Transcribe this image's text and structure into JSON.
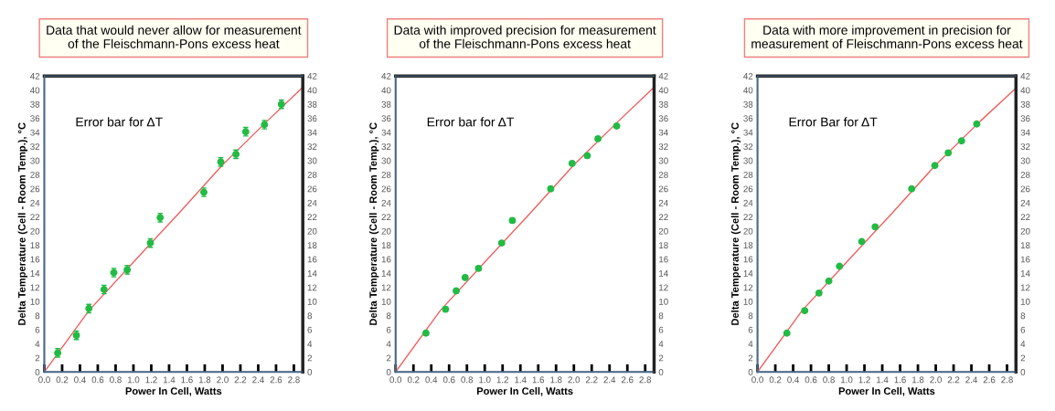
{
  "chart_data": [
    {
      "type": "scatter",
      "title": "Data that would never allow for measurement\nof the Fleischmann-Pons excess heat",
      "xlabel": "Power In Cell, Watts",
      "ylabel": "Delta Temperature (Cell - Room Temp.), °C",
      "annotations": [
        "Error bar for ΔT"
      ],
      "marker": "circle",
      "grid": false,
      "xlim": [
        0,
        2.9
      ],
      "xticks": [
        {
          "value": 0,
          "label": "0.0"
        },
        0.2,
        0.4,
        0.6,
        0.8,
        {
          "value": 1,
          "label": "1.0"
        },
        1.2,
        1.4,
        1.6,
        1.8,
        {
          "value": 2,
          "label": "2.0"
        },
        2.2,
        2.4,
        2.6,
        2.8
      ],
      "ylim": [
        0,
        42
      ],
      "yticks": [
        0,
        2,
        4,
        6,
        8,
        10,
        12,
        14,
        16,
        18,
        20,
        22,
        24,
        26,
        28,
        30,
        32,
        34,
        36,
        38,
        40,
        42
      ],
      "y2lim": [
        0,
        42
      ],
      "y2ticks": [
        0,
        2,
        4,
        6,
        8,
        10,
        12,
        14,
        16,
        18,
        20,
        22,
        24,
        26,
        28,
        30,
        32,
        34,
        36,
        38,
        40,
        42
      ],
      "series": [
        {
          "color": "#22bb44",
          "x": [
            0.15,
            0.36,
            0.5,
            0.67,
            0.78,
            0.93,
            1.19,
            1.3,
            1.79,
            1.98,
            2.15,
            2.26,
            2.47,
            2.66
          ],
          "values": [
            2.7,
            5.2,
            9.0,
            11.7,
            14.1,
            14.5,
            18.3,
            21.9,
            25.5,
            29.8,
            30.9,
            34.1,
            35.1,
            38.0
          ],
          "errors": [
            0.6,
            0.6,
            0.6,
            0.6,
            0.6,
            0.6,
            0.6,
            0.6,
            0.6,
            0.6,
            0.6,
            0.6,
            0.6,
            0.6
          ]
        },
        {
          "type": "line",
          "marker": "none",
          "color": "#f06060",
          "x": [
            0,
            0.5,
            1.0,
            1.5,
            2.0,
            2.5,
            2.9
          ],
          "values": [
            0,
            8.7,
            15.6,
            22.4,
            29.4,
            35.6,
            40.4
          ]
        }
      ]
    },
    {
      "type": "scatter",
      "title": "Data with improved precision for measurement\nof the Fleischmann-Pons excess heat",
      "xlabel": "Power In Cell, Watts",
      "ylabel": "Delta Temperature (Cell - Room Temp.), °C",
      "annotations": [
        "Error bar for ΔT"
      ],
      "marker": "circle",
      "grid": false,
      "xlim": [
        0,
        2.9
      ],
      "xticks": [
        {
          "value": 0,
          "label": "0.0"
        },
        0.2,
        0.4,
        0.6,
        0.8,
        {
          "value": 1,
          "label": "1.0"
        },
        1.2,
        1.4,
        1.6,
        1.8,
        {
          "value": 2,
          "label": "2.0"
        },
        2.2,
        2.4,
        2.6,
        2.8
      ],
      "ylim": [
        0,
        42
      ],
      "yticks": [
        0,
        2,
        4,
        6,
        8,
        10,
        12,
        14,
        16,
        18,
        20,
        22,
        24,
        26,
        28,
        30,
        32,
        34,
        36,
        38,
        40,
        42
      ],
      "y2lim": [
        0,
        42
      ],
      "y2ticks": [
        0,
        2,
        4,
        6,
        8,
        10,
        12,
        14,
        16,
        18,
        20,
        22,
        24,
        26,
        28,
        30,
        32,
        34,
        36,
        38,
        40,
        42
      ],
      "series": [
        {
          "color": "#22bb44",
          "x": [
            0.34,
            0.56,
            0.68,
            0.78,
            0.93,
            1.19,
            1.31,
            1.74,
            1.98,
            2.15,
            2.27,
            2.48
          ],
          "values": [
            5.5,
            8.9,
            11.5,
            13.4,
            14.7,
            18.3,
            21.5,
            26.0,
            29.6,
            30.7,
            33.1,
            34.9
          ],
          "errors": [
            0.3,
            0.3,
            0.3,
            0.3,
            0.3,
            0.3,
            0.3,
            0.3,
            0.3,
            0.3,
            0.3,
            0.3
          ]
        },
        {
          "type": "line",
          "marker": "none",
          "color": "#f06060",
          "x": [
            0,
            0.5,
            1.0,
            1.5,
            2.0,
            2.5,
            2.9
          ],
          "values": [
            0,
            8.7,
            15.6,
            22.4,
            29.4,
            35.6,
            40.4
          ]
        }
      ]
    },
    {
      "type": "scatter",
      "title": "Data with more improvement in precision for\nmeasurement of Fleischmann-Pons excess heat",
      "xlabel": "Power In Cell, Watts",
      "ylabel": "Delta Temperature (Cell - Room Temp.), °C",
      "annotations": [
        "Error Bar for ΔT"
      ],
      "marker": "circle",
      "grid": false,
      "xlim": [
        0,
        2.9
      ],
      "xticks": [
        {
          "value": 0,
          "label": "0.0"
        },
        0.2,
        0.4,
        0.6,
        0.8,
        {
          "value": 1,
          "label": "1.0"
        },
        1.2,
        1.4,
        1.6,
        1.8,
        {
          "value": 2,
          "label": "2.0"
        },
        2.2,
        2.4,
        2.6,
        2.8
      ],
      "ylim": [
        0,
        42
      ],
      "yticks": [
        0,
        2,
        4,
        6,
        8,
        10,
        12,
        14,
        16,
        18,
        20,
        22,
        24,
        26,
        28,
        30,
        32,
        34,
        36,
        38,
        40,
        42
      ],
      "y2lim": [
        0,
        42
      ],
      "y2ticks": [
        0,
        2,
        4,
        6,
        8,
        10,
        12,
        14,
        16,
        18,
        20,
        22,
        24,
        26,
        28,
        30,
        32,
        34,
        36,
        38,
        40,
        42
      ],
      "series": [
        {
          "color": "#22bb44",
          "x": [
            0.33,
            0.53,
            0.69,
            0.8,
            0.92,
            1.17,
            1.32,
            1.73,
            1.99,
            2.14,
            2.29,
            2.46
          ],
          "values": [
            5.5,
            8.7,
            11.2,
            12.9,
            15.0,
            18.5,
            20.6,
            26.0,
            29.3,
            31.1,
            32.8,
            35.2
          ],
          "errors": [
            0.15,
            0.15,
            0.15,
            0.15,
            0.15,
            0.15,
            0.15,
            0.15,
            0.15,
            0.15,
            0.15,
            0.15
          ]
        },
        {
          "type": "line",
          "marker": "none",
          "color": "#f06060",
          "x": [
            0,
            0.5,
            1.0,
            1.5,
            2.0,
            2.5,
            2.9
          ],
          "values": [
            0,
            8.7,
            15.6,
            22.4,
            29.4,
            35.6,
            40.3
          ]
        }
      ]
    }
  ]
}
